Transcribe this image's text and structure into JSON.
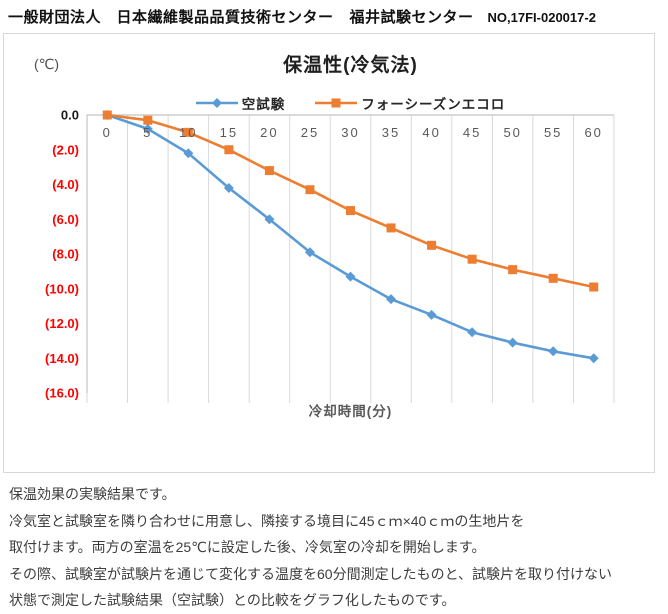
{
  "header": {
    "organization": "一般財団法人　日本繊維製品品質技術センター",
    "site": "福井試験センター",
    "report_no": "NO,17FI-020017-2"
  },
  "chart_data": {
    "type": "line",
    "title": "保温性(冷気法)",
    "xlabel": "冷却時間(分)",
    "ylabel": "(℃)",
    "x": [
      0,
      5,
      10,
      15,
      20,
      25,
      30,
      35,
      40,
      45,
      50,
      55,
      60
    ],
    "series": [
      {
        "name": "空試験",
        "color": "#5B9BD5",
        "marker": "diamond",
        "values": [
          0.0,
          -0.8,
          -2.2,
          -4.2,
          -6.0,
          -7.9,
          -9.3,
          -10.6,
          -11.5,
          -12.5,
          -13.1,
          -13.6,
          -14.0
        ]
      },
      {
        "name": "フォーシーズンエコロ",
        "color": "#ED7D31",
        "marker": "square",
        "values": [
          0.0,
          -0.3,
          -1.0,
          -2.0,
          -3.2,
          -4.3,
          -5.5,
          -6.5,
          -7.5,
          -8.3,
          -8.9,
          -9.4,
          -9.9
        ]
      }
    ],
    "ylim": [
      -16,
      0
    ],
    "ytick_labels": [
      "0.0",
      "(2.0)",
      "(4.0)",
      "(6.0)",
      "(8.0)",
      "(10.0)",
      "(12.0)",
      "(14.0)",
      "(16.0)"
    ],
    "grid": "vertical-only",
    "legend_position": "top",
    "colors": {
      "zero_tick": "#1a1a1a",
      "negative_tick": "#ff0000",
      "axis_text": "#595959",
      "gridline": "#d9d9d9",
      "axis_line": "#c3c3c3"
    }
  },
  "notes": {
    "lines": [
      "保温効果の実験結果です。",
      "冷気室と試験室を隣り合わせに用意し、隣接する境目に45ｃｍ×40ｃｍの生地片を",
      "取付けます。両方の室温を25℃に設定した後、冷気室の冷却を開始します。",
      "その際、試験室が試験片を通じて変化する温度を60分間測定したものと、試験片を取り付けない",
      "状態で測定した試験結果（空試験）との比較をグラフ化したものです。"
    ]
  }
}
